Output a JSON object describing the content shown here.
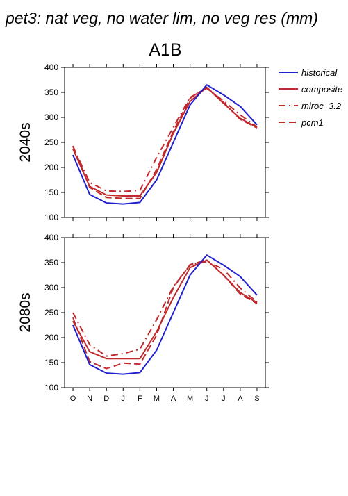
{
  "figure": {
    "title": "pet3: nat veg, no water lim, no veg res (mm)",
    "scenario": "A1B"
  },
  "legend": {
    "items": [
      {
        "name": "historical",
        "color": "#1f1fcf",
        "dash": "solid"
      },
      {
        "name": "composite",
        "color": "#c0282b",
        "dash": "solid"
      },
      {
        "name": "miroc_3.2",
        "color": "#c0282b",
        "dash": "dashdot"
      },
      {
        "name": "pcm1",
        "color": "#c0282b",
        "dash": "dash"
      }
    ]
  },
  "chart_data": [
    {
      "type": "line",
      "panel_label": "2040s",
      "categories": [
        "O",
        "N",
        "D",
        "J",
        "F",
        "M",
        "A",
        "M",
        "J",
        "J",
        "A",
        "S"
      ],
      "ylim": [
        100,
        400
      ],
      "yticks": [
        100,
        150,
        200,
        250,
        300,
        350,
        400
      ],
      "grid": false,
      "series": [
        {
          "name": "historical",
          "values": [
            225,
            146,
            129,
            127,
            130,
            175,
            250,
            325,
            365,
            345,
            322,
            285
          ]
        },
        {
          "name": "composite",
          "values": [
            237,
            162,
            145,
            143,
            143,
            190,
            268,
            332,
            360,
            328,
            298,
            280
          ]
        },
        {
          "name": "miroc_3.2",
          "values": [
            242,
            170,
            153,
            152,
            154,
            220,
            280,
            340,
            358,
            333,
            305,
            281
          ]
        },
        {
          "name": "pcm1",
          "values": [
            243,
            160,
            140,
            138,
            138,
            196,
            272,
            338,
            360,
            330,
            296,
            279
          ]
        }
      ]
    },
    {
      "type": "line",
      "panel_label": "2080s",
      "categories": [
        "O",
        "N",
        "D",
        "J",
        "F",
        "M",
        "A",
        "M",
        "J",
        "J",
        "A",
        "S"
      ],
      "ylim": [
        100,
        400
      ],
      "yticks": [
        100,
        150,
        200,
        250,
        300,
        350,
        400
      ],
      "grid": false,
      "series": [
        {
          "name": "historical",
          "values": [
            225,
            146,
            129,
            127,
            130,
            175,
            250,
            325,
            365,
            345,
            322,
            285
          ]
        },
        {
          "name": "composite",
          "values": [
            233,
            172,
            158,
            158,
            158,
            212,
            280,
            340,
            355,
            325,
            290,
            270
          ]
        },
        {
          "name": "miroc_3.2",
          "values": [
            250,
            186,
            163,
            168,
            177,
            236,
            302,
            345,
            352,
            337,
            299,
            271
          ]
        },
        {
          "name": "pcm1",
          "values": [
            240,
            152,
            138,
            149,
            147,
            205,
            300,
            346,
            355,
            325,
            287,
            268
          ]
        }
      ]
    }
  ]
}
